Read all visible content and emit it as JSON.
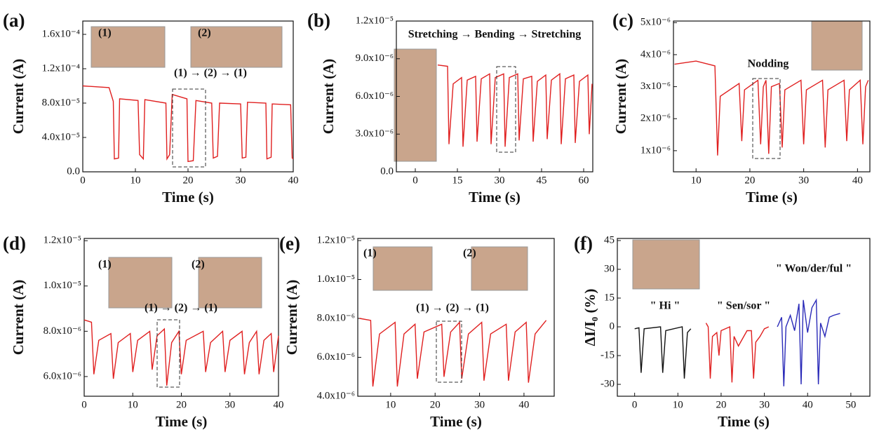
{
  "chart_data": [
    {
      "type": "line",
      "panel": "(a)",
      "xlabel": "Time (s)",
      "ylabel": "Current (A)",
      "xlim": [
        0,
        40
      ],
      "ylim": [
        0,
        0.0001755
      ],
      "xticks": [
        0,
        10,
        20,
        30,
        40
      ],
      "yticks": [
        {
          "value": 0,
          "label": "0.0"
        },
        {
          "value": 4e-05,
          "label": "4.0x10⁻⁵"
        },
        {
          "value": 8e-05,
          "label": "8.0x10⁻⁵"
        },
        {
          "value": 0.00012,
          "label": "1.2x10⁻⁴"
        },
        {
          "value": 0.00016,
          "label": "1.6x10⁻⁴"
        }
      ],
      "series": [
        {
          "color": "#e02020",
          "x": [
            0,
            5,
            5.8,
            6,
            6.8,
            7,
            10.5,
            10.8,
            11.5,
            11.8,
            15.8,
            16,
            16.5,
            17,
            19.8,
            20,
            21,
            21.5,
            24.5,
            24.8,
            25.6,
            26,
            30,
            30.3,
            31,
            31.3,
            34.8,
            35,
            35.8,
            36,
            39.5,
            39.8,
            40
          ],
          "values": [
            0.0001,
            9.8e-05,
            8.2e-05,
            1.5e-05,
            1.6e-05,
            8.5e-05,
            8.3e-05,
            2e-05,
            1.5e-05,
            8.4e-05,
            8e-05,
            1.5e-05,
            2e-05,
            9e-05,
            8.5e-05,
            1.2e-05,
            1.3e-05,
            8.3e-05,
            8e-05,
            1.6e-05,
            1.8e-05,
            8e-05,
            7.9e-05,
            1.6e-05,
            1.7e-05,
            8.1e-05,
            8e-05,
            1.5e-05,
            1.7e-05,
            7.9e-05,
            7.8e-05,
            1.6e-05,
            1.5e-05
          ]
        }
      ],
      "annotations": [
        {
          "text": "(1)"
        },
        {
          "text": "(2)"
        },
        {
          "text": "(1) → (2) → (1)"
        }
      ]
    },
    {
      "type": "line",
      "panel": "(b)",
      "xlabel": "Time (s)",
      "ylabel": "Current (A)",
      "xlim": [
        -6.75,
        63.25
      ],
      "ylim": [
        0,
        1.2e-05
      ],
      "xticks": [
        0,
        15,
        30,
        45,
        60
      ],
      "yticks": [
        {
          "value": 0,
          "label": "0.0"
        },
        {
          "value": 3e-06,
          "label": "3.0x10⁻⁶"
        },
        {
          "value": 6e-06,
          "label": "6.0x10⁻⁶"
        },
        {
          "value": 9e-06,
          "label": "9.0x10⁻⁶"
        },
        {
          "value": 1.2e-05,
          "label": "1.2x10⁻⁵"
        }
      ],
      "series": [
        {
          "color": "#e02020",
          "x": [
            8,
            11.5,
            12,
            13.5,
            16.5,
            17,
            18.5,
            21.5,
            22,
            23.5,
            26.5,
            27,
            28.5,
            31.5,
            32,
            33.5,
            36.5,
            37,
            38.5,
            41.5,
            42,
            43.5,
            46.5,
            47,
            48.5,
            51.5,
            52,
            53.5,
            56.5,
            57,
            58.5,
            61.5,
            62,
            63
          ],
          "values": [
            8.5e-06,
            8.4e-06,
            2.2e-06,
            7e-06,
            7.5e-06,
            2e-06,
            7.3e-06,
            7.6e-06,
            2.4e-06,
            7.4e-06,
            7.8e-06,
            2.2e-06,
            7.5e-06,
            7.8e-06,
            2e-06,
            7.5e-06,
            7.8e-06,
            2.5e-06,
            7.4e-06,
            7.6e-06,
            2.4e-06,
            7.2e-06,
            7.7e-06,
            2.6e-06,
            7.3e-06,
            7.8e-06,
            2.2e-06,
            7.4e-06,
            7.7e-06,
            2.3e-06,
            7.2e-06,
            7.7e-06,
            3e-06,
            7e-06
          ]
        }
      ],
      "annotations": [
        {
          "text": "Stretching → Bending → Stretching"
        }
      ]
    },
    {
      "type": "line",
      "panel": "(c)",
      "xlabel": "Time (s)",
      "ylabel": "Current (A)",
      "xlim": [
        5.8,
        42.3
      ],
      "ylim": [
        3.4e-07,
        5.05e-06
      ],
      "xticks": [
        10,
        20,
        30,
        40
      ],
      "yticks": [
        {
          "value": 1e-06,
          "label": "1x10⁻⁶"
        },
        {
          "value": 2e-06,
          "label": "2x10⁻⁶"
        },
        {
          "value": 3e-06,
          "label": "3x10⁻⁶"
        },
        {
          "value": 4e-06,
          "label": "4x10⁻⁶"
        },
        {
          "value": 5e-06,
          "label": "5x10⁻⁶"
        }
      ],
      "series": [
        {
          "color": "#e02020",
          "x": [
            6,
            10,
            13.5,
            14,
            14.5,
            18,
            18.5,
            19,
            21.5,
            22,
            22.5,
            23,
            23.5,
            24,
            25.5,
            26,
            26.5,
            29.5,
            30,
            30.5,
            33.5,
            34,
            34.5,
            37.5,
            38,
            38.5,
            40.5,
            41,
            41.5,
            42
          ],
          "values": [
            3.7e-06,
            3.8e-06,
            3.65e-06,
            8.5e-07,
            2.7e-06,
            3.1e-06,
            1.3e-06,
            2.9e-06,
            3.2e-06,
            1.2e-06,
            3e-06,
            3.2e-06,
            9e-07,
            3e-06,
            3.1e-06,
            1.1e-06,
            2.9e-06,
            3.2e-06,
            1.2e-06,
            2.9e-06,
            3.2e-06,
            1.1e-06,
            2.9e-06,
            3.2e-06,
            1.3e-06,
            2.9e-06,
            3.2e-06,
            1.2e-06,
            3e-06,
            3.2e-06
          ]
        }
      ],
      "annotations": [
        {
          "text": "Nodding"
        }
      ]
    },
    {
      "type": "line",
      "panel": "(d)",
      "xlabel": "Time (s)",
      "ylabel": "Current (A)",
      "xlim": [
        0,
        40
      ],
      "ylim": [
        5.13e-06,
        1.21e-05
      ],
      "xticks": [
        0,
        10,
        20,
        30,
        40
      ],
      "yticks": [
        {
          "value": 6e-06,
          "label": "6.0x10⁻⁶"
        },
        {
          "value": 8e-06,
          "label": "8.0x10⁻⁶"
        },
        {
          "value": 1e-05,
          "label": "1.0x10⁻⁵"
        },
        {
          "value": 1.2e-05,
          "label": "1.2x10⁻⁵"
        }
      ],
      "series": [
        {
          "color": "#e02020",
          "x": [
            0,
            1.5,
            2,
            3,
            5.5,
            6,
            7,
            9.5,
            10,
            11,
            13.5,
            14,
            15,
            16.5,
            17,
            18,
            19.5,
            20,
            21,
            24.5,
            25,
            26,
            28.5,
            29,
            30,
            32.5,
            33,
            34,
            35.5,
            36,
            37,
            38.5,
            39,
            40
          ],
          "values": [
            8.5e-06,
            8.4e-06,
            6.1e-06,
            7.6e-06,
            7.9e-06,
            5.9e-06,
            7.5e-06,
            7.9e-06,
            6.2e-06,
            7.6e-06,
            8e-06,
            6.3e-06,
            7.8e-06,
            8.1e-06,
            5.6e-06,
            7.5e-06,
            8e-06,
            6.1e-06,
            7.6e-06,
            8e-06,
            6.2e-06,
            7.5e-06,
            8e-06,
            6.2e-06,
            7.6e-06,
            8e-06,
            6.1e-06,
            7.5e-06,
            8e-06,
            6.1e-06,
            7.6e-06,
            7.9e-06,
            6.2e-06,
            7.8e-06
          ]
        }
      ],
      "annotations": [
        {
          "text": "(1)"
        },
        {
          "text": "(2)"
        },
        {
          "text": "(1)  →  (2)  →  (1)"
        }
      ]
    },
    {
      "type": "line",
      "panel": "(e)",
      "xlabel": "Time (s)",
      "ylabel": "Current (A)",
      "xlim": [
        2.6,
        46.8
      ],
      "ylim": [
        4e-06,
        1.211e-05
      ],
      "xticks": [
        10,
        20,
        30,
        40
      ],
      "yticks": [
        {
          "value": 4e-06,
          "label": "4.0x10⁻⁶"
        },
        {
          "value": 6e-06,
          "label": "6.0x10⁻⁶"
        },
        {
          "value": 8e-06,
          "label": "8.0x10⁻⁶"
        },
        {
          "value": 1e-05,
          "label": "1.0x10⁻⁵"
        },
        {
          "value": 1.2e-05,
          "label": "1.2x10⁻⁵"
        }
      ],
      "series": [
        {
          "color": "#e02020",
          "x": [
            3,
            5.5,
            6,
            7.5,
            11,
            11.5,
            13,
            15.5,
            16,
            17.5,
            21.5,
            22,
            23.5,
            25.5,
            26,
            27.5,
            30.5,
            31,
            32.5,
            36,
            36.5,
            38,
            40.5,
            41,
            42.5,
            45
          ],
          "values": [
            8e-06,
            7.9e-06,
            4.5e-06,
            7.2e-06,
            7.8e-06,
            4.5e-06,
            7.2e-06,
            7.7e-06,
            4.9e-06,
            7.3e-06,
            7.7e-06,
            5e-06,
            7.3e-06,
            7.8e-06,
            4.9e-06,
            7.2e-06,
            7.8e-06,
            4.8e-06,
            7.2e-06,
            7.7e-06,
            4.8e-06,
            7.3e-06,
            7.8e-06,
            4.7e-06,
            7.2e-06,
            7.9e-06
          ]
        }
      ],
      "annotations": [
        {
          "text": "(1)"
        },
        {
          "text": "(2)"
        },
        {
          "text": "(1)  →  (2)  →  (1)"
        }
      ]
    },
    {
      "type": "line",
      "panel": "(f)",
      "xlabel": "Time (s)",
      "ylabel": "ΔI/I₀ (%)",
      "xlim": [
        -4,
        54.4
      ],
      "ylim": [
        -36.2,
        46.1
      ],
      "xticks": [
        0,
        10,
        20,
        30,
        40,
        50
      ],
      "yticks": [
        -30,
        -15,
        0,
        15,
        30,
        45
      ],
      "series": [
        {
          "color": "#111111",
          "x": [
            0,
            1,
            1.5,
            2.2,
            6,
            6.5,
            7.2,
            11,
            11.5,
            12.2,
            13
          ],
          "values": [
            -1,
            -0.5,
            -24,
            -1,
            0,
            -24,
            -2,
            0,
            -27,
            -3,
            -1
          ]
        },
        {
          "color": "#e02020",
          "x": [
            16.5,
            17,
            17.5,
            18,
            19,
            19.5,
            20,
            22,
            22.5,
            23,
            24,
            26,
            27,
            27.5,
            28,
            29,
            30,
            31
          ],
          "values": [
            2,
            0,
            -27,
            -5,
            -3,
            -15,
            -2,
            0,
            -29,
            -5,
            -10,
            -2,
            -2,
            -27,
            -8,
            -5,
            -1,
            0
          ]
        },
        {
          "color": "#2a2ab8",
          "x": [
            33,
            34,
            34.5,
            35,
            36,
            37,
            38,
            38.5,
            39,
            40,
            41,
            42,
            42.5,
            43,
            44,
            45,
            46,
            47.5
          ],
          "values": [
            0,
            5,
            -31,
            0,
            6,
            -2,
            12,
            -30,
            14,
            -3,
            10,
            14,
            -30,
            2,
            -5,
            5,
            6,
            7
          ]
        }
      ],
      "annotations": [
        {
          "text": "\" Hi \"",
          "color": "#111111"
        },
        {
          "text": "\" Sen/sor \"",
          "color": "#e02020"
        },
        {
          "text": "\" Won/der/ful \"",
          "color": "#2a2ab8"
        }
      ]
    }
  ]
}
